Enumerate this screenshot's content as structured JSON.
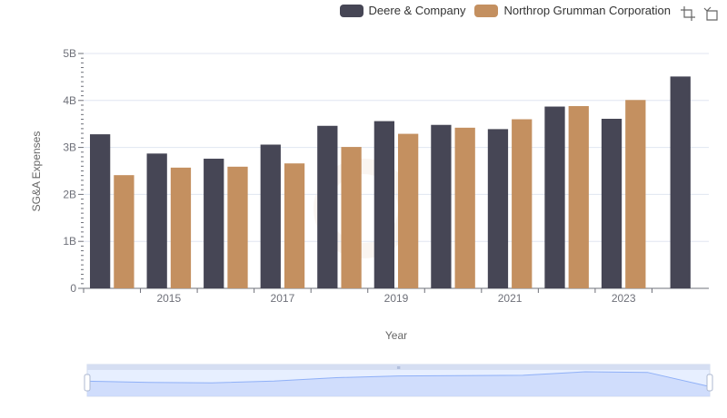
{
  "legend": {
    "items": [
      {
        "label": "Deere & Company",
        "color": "#464655"
      },
      {
        "label": "Northrop Grumman Corporation",
        "color": "#c49060"
      }
    ]
  },
  "toolbox": {
    "icons": [
      "zoom-icon",
      "zoom-reset-icon"
    ]
  },
  "chart_data": {
    "type": "bar",
    "xlabel": "Year",
    "ylabel": "SG&A Expenses",
    "x": [
      2014,
      2015,
      2016,
      2017,
      2018,
      2019,
      2020,
      2021,
      2022,
      2023,
      2024
    ],
    "x_tick_labels": [
      "2015",
      "2017",
      "2019",
      "2021",
      "2023"
    ],
    "y_tick_labels": [
      "0",
      "1B",
      "2B",
      "3B",
      "4B",
      "5B"
    ],
    "ylim": [
      0,
      5000000000
    ],
    "grid": true,
    "legend_position": "top-right",
    "series": [
      {
        "name": "Deere & Company",
        "color": "#464655",
        "values": [
          3280000000,
          2870000000,
          2760000000,
          3060000000,
          3460000000,
          3560000000,
          3480000000,
          3390000000,
          3870000000,
          3610000000,
          4510000000
        ]
      },
      {
        "name": "Northrop Grumman Corporation",
        "color": "#c49060",
        "values": [
          2410000000,
          2570000000,
          2590000000,
          2660000000,
          3010000000,
          3290000000,
          3420000000,
          3600000000,
          3880000000,
          4010000000,
          null
        ]
      }
    ],
    "data_zoom": {
      "type": "slider",
      "start_percent": 0,
      "end_percent": 100
    }
  }
}
